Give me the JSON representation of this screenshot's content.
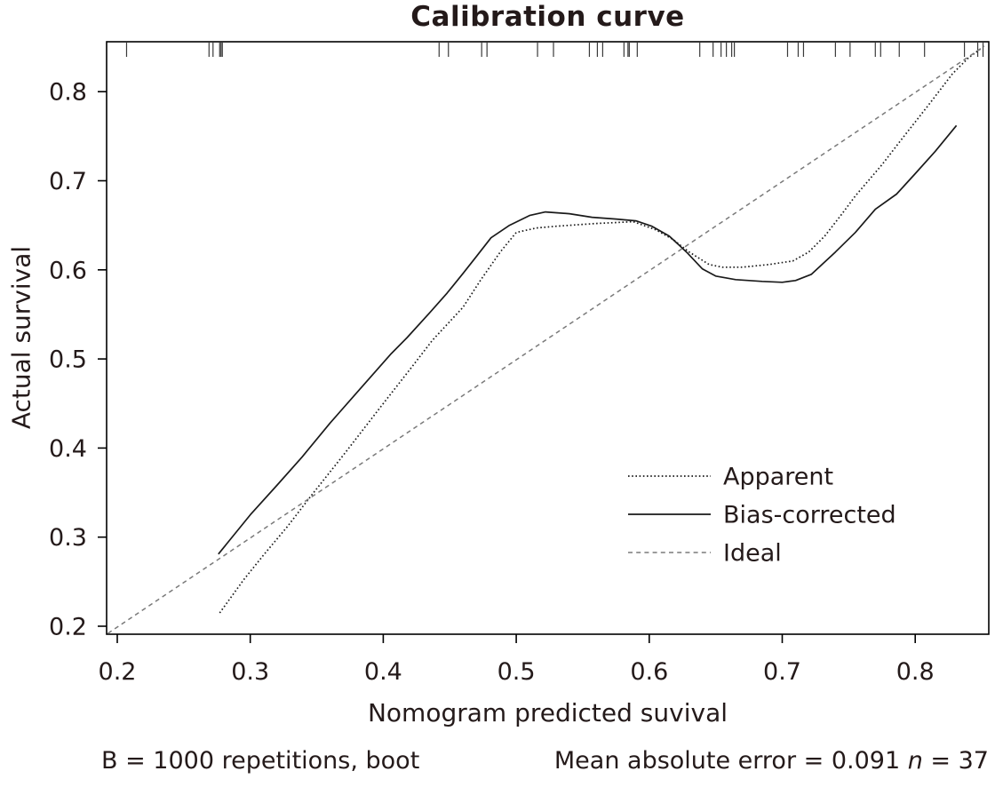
{
  "chart_data": {
    "type": "line",
    "title": "Calibration curve",
    "xlabel": "Nomogram predicted suvival",
    "ylabel": "Actual survival",
    "x_ticks": [
      "0.2",
      "0.3",
      "0.4",
      "0.5",
      "0.6",
      "0.7",
      "0.8"
    ],
    "y_ticks": [
      "0.2",
      "0.3",
      "0.4",
      "0.5",
      "0.6",
      "0.7",
      "0.8"
    ],
    "x_range": [
      0.192,
      0.857
    ],
    "y_range": [
      0.191,
      0.856
    ],
    "grid": false,
    "legend_position": "inside-right-middle",
    "colors": {
      "line_dark": "#1a1a1a",
      "ideal_gray": "#7a7a7a",
      "text": "#241a1a",
      "rug": "#3a3a3a"
    },
    "footnotes": {
      "left": "B = 1000 repetitions, boot",
      "mae_prefix": "Mean absolute error = 0.091 ",
      "n_symbol": "n",
      "n_suffix": " = 37"
    },
    "rug_x": [
      0.207,
      0.269,
      0.272,
      0.277,
      0.278,
      0.279,
      0.442,
      0.449,
      0.474,
      0.478,
      0.516,
      0.528,
      0.555,
      0.561,
      0.565,
      0.581,
      0.584,
      0.585,
      0.591,
      0.638,
      0.648,
      0.654,
      0.658,
      0.662,
      0.664,
      0.704,
      0.712,
      0.716,
      0.74,
      0.751,
      0.77,
      0.774,
      0.788,
      0.807,
      0.837,
      0.847,
      0.851
    ],
    "series": [
      {
        "name": "Apparent",
        "key": "apparent",
        "style": "dotted",
        "color": "#1a1a1a",
        "points": [
          [
            0.277,
            0.215
          ],
          [
            0.295,
            0.252
          ],
          [
            0.31,
            0.28
          ],
          [
            0.328,
            0.312
          ],
          [
            0.346,
            0.347
          ],
          [
            0.37,
            0.392
          ],
          [
            0.4,
            0.45
          ],
          [
            0.42,
            0.488
          ],
          [
            0.437,
            0.521
          ],
          [
            0.46,
            0.558
          ],
          [
            0.473,
            0.588
          ],
          [
            0.488,
            0.62
          ],
          [
            0.5,
            0.642
          ],
          [
            0.515,
            0.647
          ],
          [
            0.53,
            0.649
          ],
          [
            0.56,
            0.652
          ],
          [
            0.588,
            0.654
          ],
          [
            0.605,
            0.645
          ],
          [
            0.618,
            0.634
          ],
          [
            0.63,
            0.62
          ],
          [
            0.645,
            0.606
          ],
          [
            0.655,
            0.603
          ],
          [
            0.67,
            0.603
          ],
          [
            0.69,
            0.606
          ],
          [
            0.708,
            0.61
          ],
          [
            0.72,
            0.62
          ],
          [
            0.732,
            0.638
          ],
          [
            0.745,
            0.663
          ],
          [
            0.755,
            0.683
          ],
          [
            0.775,
            0.718
          ],
          [
            0.79,
            0.747
          ],
          [
            0.81,
            0.785
          ],
          [
            0.828,
            0.82
          ],
          [
            0.84,
            0.838
          ],
          [
            0.85,
            0.849
          ]
        ]
      },
      {
        "name": "Bias-corrected",
        "key": "bias_corrected",
        "style": "solid",
        "color": "#1a1a1a",
        "points": [
          [
            0.276,
            0.281
          ],
          [
            0.3,
            0.325
          ],
          [
            0.32,
            0.358
          ],
          [
            0.339,
            0.39
          ],
          [
            0.36,
            0.428
          ],
          [
            0.38,
            0.462
          ],
          [
            0.406,
            0.506
          ],
          [
            0.418,
            0.524
          ],
          [
            0.435,
            0.552
          ],
          [
            0.448,
            0.574
          ],
          [
            0.46,
            0.596
          ],
          [
            0.47,
            0.615
          ],
          [
            0.481,
            0.636
          ],
          [
            0.495,
            0.65
          ],
          [
            0.51,
            0.661
          ],
          [
            0.522,
            0.665
          ],
          [
            0.54,
            0.663
          ],
          [
            0.557,
            0.659
          ],
          [
            0.575,
            0.657
          ],
          [
            0.59,
            0.655
          ],
          [
            0.602,
            0.649
          ],
          [
            0.615,
            0.638
          ],
          [
            0.628,
            0.62
          ],
          [
            0.64,
            0.601
          ],
          [
            0.65,
            0.593
          ],
          [
            0.665,
            0.589
          ],
          [
            0.685,
            0.587
          ],
          [
            0.7,
            0.586
          ],
          [
            0.71,
            0.588
          ],
          [
            0.722,
            0.595
          ],
          [
            0.74,
            0.62
          ],
          [
            0.755,
            0.642
          ],
          [
            0.77,
            0.668
          ],
          [
            0.786,
            0.685
          ],
          [
            0.8,
            0.708
          ],
          [
            0.815,
            0.733
          ],
          [
            0.831,
            0.762
          ]
        ]
      },
      {
        "name": "Ideal",
        "key": "ideal",
        "style": "dashed",
        "color": "#7a7a7a",
        "points": [
          [
            0.193,
            0.192
          ],
          [
            0.852,
            0.851
          ]
        ]
      }
    ]
  }
}
